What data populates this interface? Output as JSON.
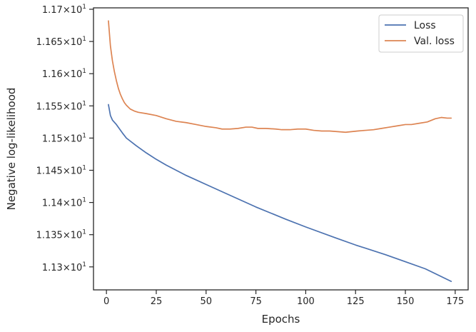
{
  "chart_data": {
    "type": "line",
    "xlabel": "Epochs",
    "ylabel": "Negative log-likelihood",
    "xlim": [
      -6.5,
      181.5
    ],
    "ylim": [
      11.2643,
      11.7022
    ],
    "x_ticks": [
      0,
      25,
      50,
      75,
      100,
      125,
      150,
      175
    ],
    "x_tick_labels": [
      "0",
      "25",
      "50",
      "75",
      "100",
      "125",
      "150",
      "175"
    ],
    "y_ticks": [
      11.3,
      11.35,
      11.4,
      11.45,
      11.5,
      11.55,
      11.6,
      11.65,
      11.7
    ],
    "y_tick_labels": [
      "1.13",
      "1.135",
      "1.14",
      "1.145",
      "1.15",
      "1.155",
      "1.16",
      "1.165",
      "1.17"
    ],
    "y_tick_suffix": "×10",
    "y_tick_exponent": "1",
    "grid": false,
    "legend_position": "top-right",
    "series": [
      {
        "name": "Loss",
        "color": "#4c72b0",
        "x": [
          1,
          2,
          3,
          5,
          8,
          10,
          15,
          20,
          25,
          30,
          40,
          50,
          60,
          75,
          90,
          100,
          115,
          125,
          140,
          150,
          160,
          173
        ],
        "y": [
          11.552,
          11.535,
          11.528,
          11.521,
          11.508,
          11.5,
          11.488,
          11.477,
          11.467,
          11.458,
          11.442,
          11.428,
          11.414,
          11.393,
          11.374,
          11.362,
          11.345,
          11.334,
          11.319,
          11.308,
          11.297,
          11.2775
        ]
      },
      {
        "name": "Val. loss",
        "color": "#dd8452",
        "x": [
          1,
          2,
          3,
          4,
          5,
          6,
          7,
          8,
          9,
          10,
          11,
          12,
          14,
          16,
          20,
          25,
          30,
          35,
          40,
          45,
          50,
          55,
          58,
          62,
          66,
          70,
          73,
          76,
          80,
          85,
          88,
          92,
          96,
          100,
          104,
          108,
          112,
          116,
          120,
          123,
          126,
          130,
          134,
          138,
          142,
          146,
          150,
          153,
          157,
          161,
          165,
          168,
          171,
          173
        ],
        "y": [
          11.682,
          11.643,
          11.62,
          11.603,
          11.589,
          11.577,
          11.568,
          11.561,
          11.555,
          11.551,
          11.548,
          11.545,
          11.542,
          11.54,
          11.538,
          11.535,
          11.53,
          11.526,
          11.524,
          11.521,
          11.518,
          11.516,
          11.514,
          11.514,
          11.515,
          11.517,
          11.517,
          11.515,
          11.515,
          11.514,
          11.513,
          11.513,
          11.514,
          11.514,
          11.512,
          11.511,
          11.511,
          11.51,
          11.509,
          11.51,
          11.511,
          11.512,
          11.513,
          11.515,
          11.517,
          11.519,
          11.521,
          11.521,
          11.523,
          11.525,
          11.53,
          11.532,
          11.531,
          11.531
        ]
      }
    ]
  }
}
